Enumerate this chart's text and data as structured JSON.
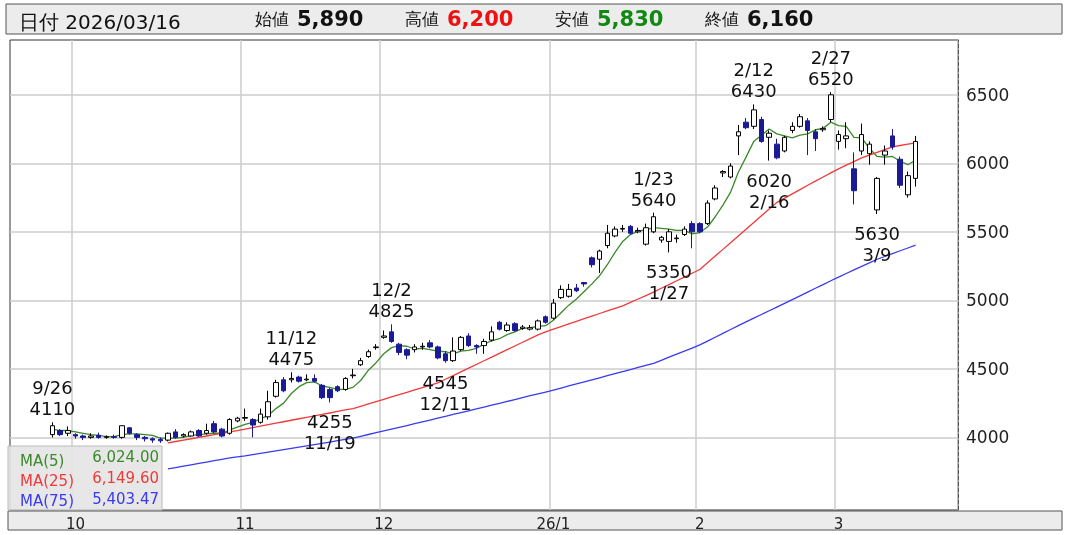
{
  "chart_data": {
    "type": "candlestick",
    "title": "日付 2026/03/16",
    "categories": [
      null,
      null,
      null,
      null,
      null,
      null,
      null,
      null,
      "10",
      null,
      null,
      null,
      null,
      null,
      null,
      null,
      null,
      null,
      null,
      null,
      null,
      null,
      null,
      null,
      null,
      null,
      null,
      null,
      null,
      null,
      "11",
      null,
      null,
      null,
      null,
      null,
      null,
      null,
      null,
      null,
      null,
      null,
      null,
      null,
      null,
      null,
      null,
      null,
      "12",
      null,
      null,
      null,
      null,
      null,
      null,
      null,
      null,
      null,
      null,
      null,
      null,
      null,
      null,
      null,
      null,
      null,
      null,
      null,
      null,
      null,
      "26/1",
      null,
      null,
      null,
      null,
      null,
      null,
      null,
      null,
      null,
      null,
      null,
      null,
      null,
      null,
      null,
      null,
      null,
      null,
      "2",
      null,
      null,
      null,
      null,
      null,
      null,
      null,
      null,
      null,
      null,
      null,
      null,
      null,
      null,
      null,
      null,
      null,
      "3",
      null,
      null,
      null,
      null,
      null,
      null,
      null,
      null,
      null,
      null,
      null,
      null,
      null,
      null,
      null
    ],
    "ohlc": [
      null,
      null,
      null,
      null,
      null,
      [
        4020,
        4110,
        4000,
        4085
      ],
      [
        4050,
        4060,
        4010,
        4020
      ],
      [
        4030,
        4080,
        4010,
        4050
      ],
      [
        4020,
        4030,
        3990,
        4010
      ],
      [
        4010,
        4020,
        3980,
        4000
      ],
      [
        4000,
        4030,
        3990,
        4010
      ],
      [
        4015,
        4035,
        3990,
        4000
      ],
      [
        4000,
        4015,
        3990,
        4005
      ],
      [
        4005,
        4020,
        3990,
        4000
      ],
      [
        4000,
        4085,
        3990,
        4085
      ],
      [
        4070,
        4075,
        4020,
        4030
      ],
      [
        4020,
        4030,
        3980,
        4000
      ],
      [
        4000,
        4010,
        3970,
        3990
      ],
      [
        3990,
        4000,
        3960,
        3980
      ],
      [
        3985,
        4000,
        3960,
        3975
      ],
      [
        3980,
        4035,
        3970,
        4030
      ],
      [
        4040,
        4060,
        3990,
        4000
      ],
      [
        4010,
        4030,
        4000,
        4020
      ],
      [
        4010,
        4050,
        4005,
        4040
      ],
      [
        4050,
        4060,
        4005,
        4010
      ],
      [
        4030,
        4100,
        4020,
        4050
      ],
      [
        4100,
        4120,
        4030,
        4040
      ],
      [
        4060,
        4070,
        4000,
        4010
      ],
      [
        4030,
        4140,
        4020,
        4130
      ],
      [
        4120,
        4150,
        4110,
        4140
      ],
      [
        4140,
        4210,
        4120,
        4145
      ],
      [
        4130,
        4140,
        4000,
        4090
      ],
      [
        4110,
        4210,
        4100,
        4170
      ],
      [
        4150,
        4340,
        4130,
        4260
      ],
      [
        4300,
        4420,
        4290,
        4400
      ],
      [
        4420,
        4440,
        4330,
        4340
      ],
      [
        4420,
        4475,
        4400,
        4430
      ],
      [
        4440,
        4450,
        4400,
        4410
      ],
      [
        4420,
        4460,
        4410,
        4425
      ],
      [
        4430,
        4460,
        4400,
        4410
      ],
      [
        4380,
        4390,
        4280,
        4290
      ],
      [
        4350,
        4360,
        4255,
        4290
      ],
      [
        4370,
        4380,
        4330,
        4340
      ],
      [
        4350,
        4440,
        4340,
        4430
      ],
      [
        4450,
        4500,
        4430,
        4455
      ],
      [
        4530,
        4580,
        4520,
        4560
      ],
      [
        4590,
        4640,
        4580,
        4625
      ],
      [
        4655,
        4680,
        4640,
        4660
      ],
      [
        4730,
        4780,
        4720,
        4740
      ],
      [
        4770,
        4825,
        4690,
        4700
      ],
      [
        4680,
        4690,
        4600,
        4620
      ],
      [
        4640,
        4650,
        4570,
        4600
      ],
      [
        4640,
        4680,
        4620,
        4660
      ],
      [
        4660,
        4690,
        4640,
        4665
      ],
      [
        4690,
        4710,
        4650,
        4660
      ],
      [
        4660,
        4670,
        4570,
        4580
      ],
      [
        4610,
        4630,
        4545,
        4560
      ],
      [
        4560,
        4730,
        4550,
        4630
      ],
      [
        4640,
        4740,
        4630,
        4730
      ],
      [
        4740,
        4760,
        4660,
        4670
      ],
      [
        4670,
        4680,
        4610,
        4660
      ],
      [
        4670,
        4720,
        4610,
        4700
      ],
      [
        4710,
        4810,
        4700,
        4770
      ],
      [
        4840,
        4850,
        4780,
        4790
      ],
      [
        4780,
        4840,
        4770,
        4820
      ],
      [
        4830,
        4840,
        4770,
        4780
      ],
      [
        4795,
        4820,
        4785,
        4805
      ],
      [
        4790,
        4820,
        4780,
        4800
      ],
      [
        4790,
        4860,
        4780,
        4850
      ],
      [
        4880,
        4890,
        4830,
        4840
      ],
      [
        4870,
        5010,
        4860,
        4980
      ],
      [
        5020,
        5110,
        5010,
        5080
      ],
      [
        5030,
        5120,
        5020,
        5080
      ],
      [
        5090,
        5120,
        5060,
        5070
      ],
      [
        5130,
        5135,
        5100,
        5120
      ],
      [
        5310,
        5320,
        5240,
        5260
      ],
      [
        5300,
        5370,
        5200,
        5360
      ],
      [
        5400,
        5550,
        5380,
        5490
      ],
      [
        5470,
        5540,
        5460,
        5520
      ],
      [
        5520,
        5550,
        5500,
        5525
      ],
      [
        5540,
        5550,
        5480,
        5490
      ],
      [
        5500,
        5530,
        5490,
        5510
      ],
      [
        5410,
        5560,
        5400,
        5530
      ],
      [
        5500,
        5640,
        5490,
        5610
      ],
      [
        5440,
        5470,
        5420,
        5460
      ],
      [
        5430,
        5520,
        5350,
        5500
      ],
      [
        5450,
        5480,
        5420,
        5455
      ],
      [
        5480,
        5540,
        5470,
        5520
      ],
      [
        5560,
        5580,
        5380,
        5500
      ],
      [
        5560,
        5570,
        5490,
        5500
      ],
      [
        5560,
        5730,
        5550,
        5710
      ],
      [
        5740,
        5840,
        5730,
        5820
      ],
      [
        5930,
        5950,
        5900,
        5940
      ],
      [
        5900,
        6000,
        5890,
        5980
      ],
      [
        6200,
        6280,
        6060,
        6230
      ],
      [
        6300,
        6330,
        6250,
        6260
      ],
      [
        6270,
        6430,
        6250,
        6390
      ],
      [
        6320,
        6340,
        6150,
        6160
      ],
      [
        6190,
        6240,
        6020,
        6220
      ],
      [
        6140,
        6180,
        6030,
        6040
      ],
      [
        6090,
        6200,
        6080,
        6190
      ],
      [
        6240,
        6300,
        6220,
        6270
      ],
      [
        6270,
        6360,
        6260,
        6340
      ],
      [
        6310,
        6330,
        6060,
        6240
      ],
      [
        6230,
        6250,
        6090,
        6180
      ],
      [
        6245,
        6270,
        6230,
        6255
      ],
      [
        6320,
        6520,
        6300,
        6500
      ],
      [
        6160,
        6240,
        6100,
        6210
      ],
      [
        6180,
        6300,
        6110,
        6200
      ],
      [
        5960,
        6080,
        5700,
        5800
      ],
      [
        6090,
        6290,
        6060,
        6210
      ],
      [
        6070,
        6160,
        5990,
        6140
      ],
      [
        5660,
        5900,
        5630,
        5890
      ],
      [
        6060,
        6130,
        5990,
        6090
      ],
      [
        6200,
        6250,
        6100,
        6120
      ],
      [
        6030,
        6050,
        5820,
        5840
      ],
      [
        5770,
        5940,
        5750,
        5910
      ],
      [
        5890,
        6200,
        5830,
        6160
      ],
      null,
      null,
      null,
      null,
      null
    ],
    "series": [
      {
        "type": "line",
        "name": "MA(5)",
        "color": "#3a8a2a",
        "values": [
          null,
          null,
          null,
          null,
          null,
          4060,
          4050,
          4050,
          4040,
          4030,
          4020,
          4015,
          4005,
          4005,
          4020,
          4025,
          4025,
          4020,
          4015,
          3995,
          3995,
          3995,
          4000,
          4015,
          4020,
          4025,
          4030,
          4030,
          4055,
          4075,
          4095,
          4110,
          4135,
          4160,
          4210,
          4250,
          4320,
          4370,
          4400,
          4405,
          4375,
          4365,
          4350,
          4350,
          4365,
          4415,
          4490,
          4545,
          4610,
          4655,
          4670,
          4665,
          4645,
          4650,
          4640,
          4630,
          4625,
          4610,
          4630,
          4635,
          4650,
          4680,
          4705,
          4720,
          4750,
          4770,
          4795,
          4800,
          4810,
          4815,
          4855,
          4910,
          4965,
          5010,
          5065,
          5120,
          5180,
          5260,
          5350,
          5430,
          5480,
          5505,
          5515,
          5530,
          5525,
          5520,
          5510,
          5510,
          5485,
          5495,
          5535,
          5610,
          5695,
          5790,
          5935,
          6045,
          6160,
          6205,
          6250,
          6215,
          6200,
          6185,
          6205,
          6215,
          6245,
          6255,
          6300,
          6275,
          6270,
          6190,
          6185,
          6110,
          6050,
          6045,
          6050,
          6015,
          5990,
          6024,
          null,
          null,
          null,
          null,
          null
        ]
      },
      {
        "type": "line",
        "name": "MA(25)",
        "color": "#f03a3a",
        "values": [
          null,
          null,
          null,
          null,
          null,
          null,
          null,
          null,
          null,
          null,
          null,
          null,
          null,
          null,
          null,
          null,
          null,
          null,
          null,
          null,
          3960,
          3970,
          3980,
          3990,
          4000,
          4010,
          4020,
          4030,
          4040,
          4050,
          4060,
          4071,
          4082,
          4093,
          4104,
          4114,
          4125,
          4136,
          4146,
          4157,
          4168,
          4178,
          4189,
          4200,
          4210,
          4227,
          4244,
          4261,
          4278,
          4295,
          4312,
          4329,
          4346,
          4363,
          4380,
          4397,
          4424,
          4451,
          4478,
          4505,
          4532,
          4559,
          4586,
          4613,
          4640,
          4667,
          4694,
          4721,
          4748,
          4770,
          4790,
          4809,
          4828,
          4847,
          4866,
          4885,
          4904,
          4923,
          4942,
          4960,
          4985,
          5010,
          5035,
          5060,
          5088,
          5115,
          5143,
          5170,
          5198,
          5225,
          5274,
          5323,
          5372,
          5421,
          5470,
          5519,
          5568,
          5617,
          5666,
          5715,
          5746,
          5777,
          5808,
          5840,
          5870,
          5900,
          5930,
          5960,
          5987,
          6013,
          6040,
          6060,
          6080,
          6100,
          6120,
          6130,
          6140,
          6150,
          null,
          null,
          null,
          null,
          null
        ]
      },
      {
        "type": "line",
        "name": "MA(75)",
        "color": "#3a3af0",
        "values": [
          null,
          null,
          null,
          null,
          null,
          null,
          null,
          null,
          null,
          null,
          null,
          null,
          null,
          null,
          null,
          null,
          null,
          null,
          null,
          null,
          3770,
          3780,
          3790,
          3800,
          3810,
          3820,
          3830,
          3840,
          3850,
          3858,
          3865,
          3874,
          3883,
          3892,
          3901,
          3910,
          3920,
          3929,
          3938,
          3947,
          3956,
          3966,
          3976,
          3986,
          3995,
          4008,
          4021,
          4034,
          4047,
          4060,
          4073,
          4086,
          4100,
          4113,
          4126,
          4140,
          4153,
          4167,
          4180,
          4194,
          4208,
          4221,
          4235,
          4249,
          4262,
          4276,
          4290,
          4304,
          4317,
          4331,
          4345,
          4360,
          4375,
          4390,
          4405,
          4420,
          4435,
          4450,
          4465,
          4480,
          4495,
          4510,
          4525,
          4540,
          4562,
          4585,
          4608,
          4630,
          4652,
          4675,
          4703,
          4731,
          4759,
          4787,
          4815,
          4843,
          4870,
          4897,
          4924,
          4951,
          4978,
          5005,
          5033,
          5060,
          5088,
          5115,
          5143,
          5170,
          5196,
          5222,
          5248,
          5274,
          5300,
          5320,
          5341,
          5362,
          5382,
          5403,
          null,
          null,
          null,
          null,
          null
        ]
      }
    ],
    "ylim": [
      3470,
      6900
    ],
    "yticks": [
      4000,
      4500,
      5000,
      5500,
      6000,
      6500
    ],
    "grid": true,
    "legend": "bottom left",
    "annotations": [
      "始値 5,890",
      "高値 6,200",
      "安値 5,830",
      "終値 6,160",
      "6,024.00",
      "6,149.60",
      "5,403.47",
      {
        "text": "9/26\n4110",
        "y": 4110
      },
      {
        "text": "11/12\n4475",
        "y": 4475
      },
      {
        "text": "4255\n11/19",
        "y": 4255
      },
      {
        "text": "12/2\n4825",
        "y": 4825
      },
      {
        "text": "4545\n12/11",
        "y": 4545
      },
      {
        "text": "1/23\n5640",
        "y": 5640
      },
      {
        "text": "5350\n1/27",
        "y": 5350
      },
      {
        "text": "2/12\n6430",
        "y": 6430
      },
      {
        "text": "6020\n2/16",
        "y": 6020
      },
      {
        "text": "2/27\n6520",
        "y": 6520
      },
      {
        "text": "5630\n3/9",
        "y": 5630
      }
    ]
  }
}
